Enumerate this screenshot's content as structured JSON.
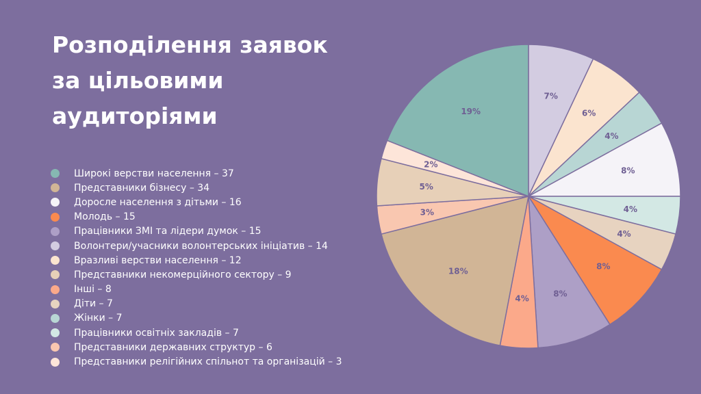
{
  "title_lines": [
    "Розподілення заявок",
    "за цільовими",
    "аудиторіями"
  ],
  "colors": {
    "background": "#7d6e9e",
    "label_text": "#6f5f93"
  },
  "legend": [
    {
      "text": "Широкі верстви населення – 37",
      "color": "#86b8b2"
    },
    {
      "text": "Представники бізнесу – 34",
      "color": "#d1b596"
    },
    {
      "text": "Доросле населення з дітьми – 16",
      "color": "#f5f3f8"
    },
    {
      "text": "Молодь – 15",
      "color": "#fa8a4f"
    },
    {
      "text": "Працівники ЗМІ та лідери думок – 15",
      "color": "#ad9fc6"
    },
    {
      "text": "Волонтери/учасники волонтерських ініціатив – 14",
      "color": "#d3cce1"
    },
    {
      "text": "Вразливі верстви населення – 12",
      "color": "#fbe4cf"
    },
    {
      "text": "Представники некомерційного сектору – 9",
      "color": "#e7d0b8"
    },
    {
      "text": "Інші – 8",
      "color": "#fba98a"
    },
    {
      "text": "Діти – 7",
      "color": "#e7d3c0"
    },
    {
      "text": "Жінки – 7",
      "color": "#b8d6d4"
    },
    {
      "text": "Працівники освітніх закладів – 7",
      "color": "#d3e8e4"
    },
    {
      "text": "Представники державних структур – 6",
      "color": "#f9c7b0"
    },
    {
      "text": "Представники релігійних спільнот та організацій – 3",
      "color": "#fde5d9"
    }
  ],
  "chart_data": {
    "type": "pie",
    "start": "top",
    "direction": "clockwise",
    "slices": [
      {
        "label": "7%",
        "value": 7,
        "color": "#d3cce1"
      },
      {
        "label": "6%",
        "value": 6,
        "color": "#fbe4cf"
      },
      {
        "label": "4%",
        "value": 4,
        "color": "#b8d6d4"
      },
      {
        "label": "8%",
        "value": 8,
        "color": "#f5f3f8"
      },
      {
        "label": "4%",
        "value": 4,
        "color": "#d3e8e4"
      },
      {
        "label": "4%",
        "value": 4,
        "color": "#e7d3c0"
      },
      {
        "label": "8%",
        "value": 8,
        "color": "#fa8a4f"
      },
      {
        "label": "8%",
        "value": 8,
        "color": "#ad9fc6"
      },
      {
        "label": "4%",
        "value": 4,
        "color": "#fba98a"
      },
      {
        "label": "18%",
        "value": 18,
        "color": "#d1b596"
      },
      {
        "label": "3%",
        "value": 3,
        "color": "#f9c7b0"
      },
      {
        "label": "5%",
        "value": 5,
        "color": "#e7d0b8"
      },
      {
        "label": "2%",
        "value": 2,
        "color": "#fde5d9"
      },
      {
        "label": "19%",
        "value": 19,
        "color": "#86b8b2"
      }
    ]
  }
}
